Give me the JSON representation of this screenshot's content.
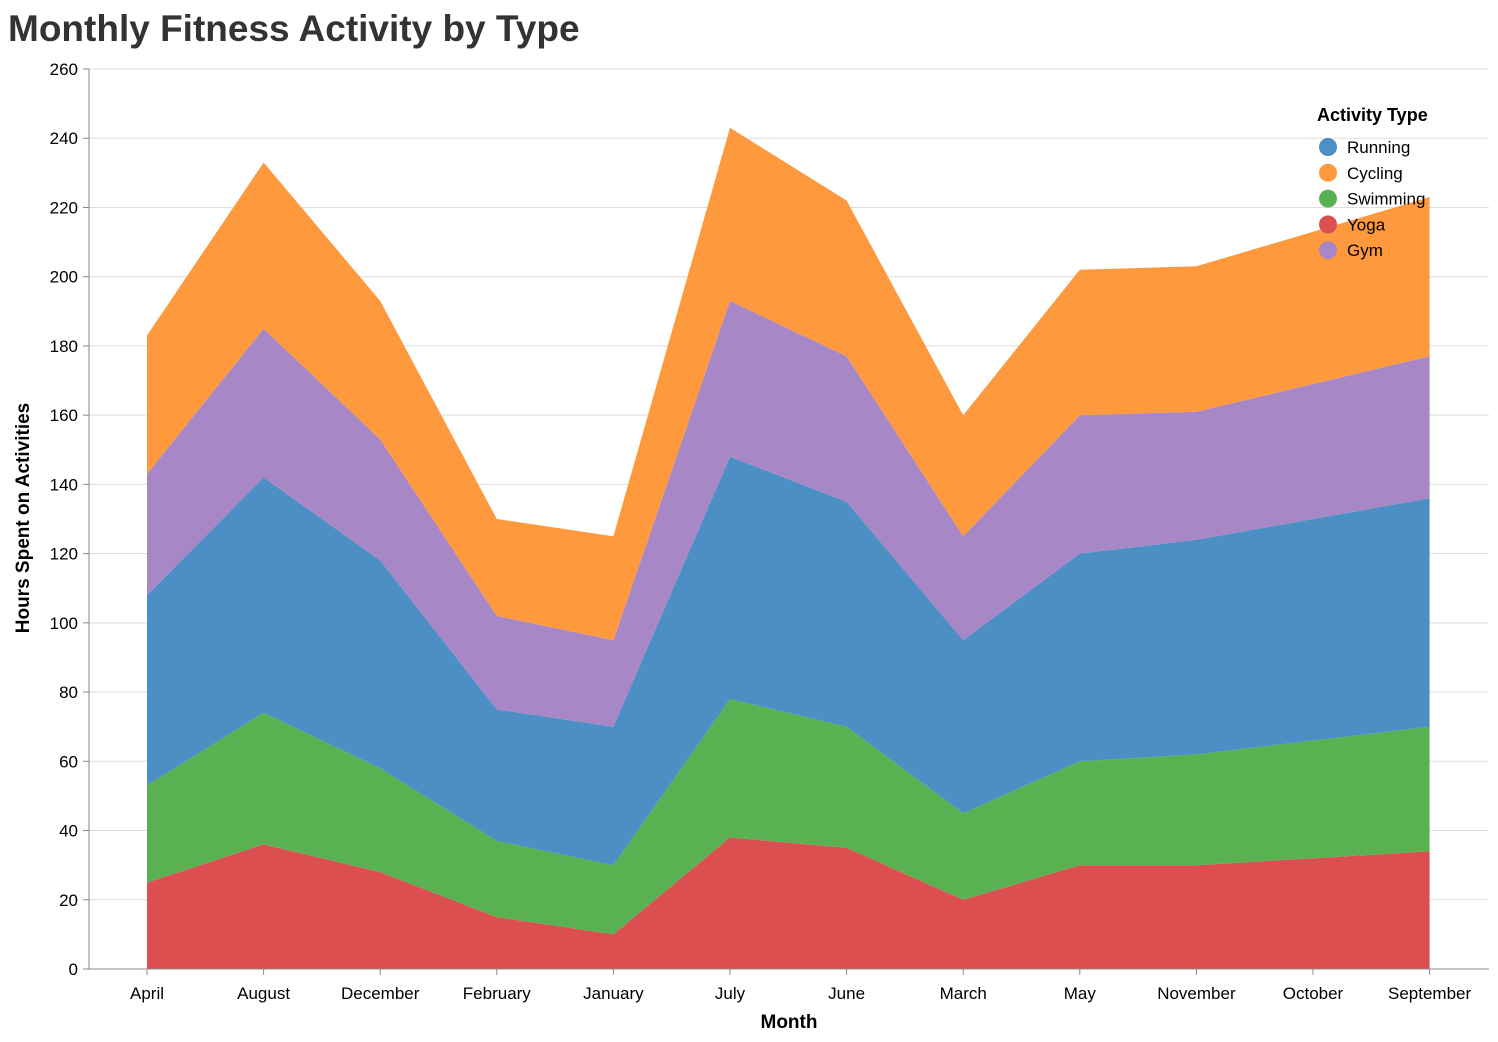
{
  "chart_data": {
    "type": "area",
    "stacked": true,
    "title": "Monthly Fitness Activity by Type",
    "xlabel": "Month",
    "ylabel": "Hours Spent on Activities",
    "ylim": [
      0,
      260
    ],
    "yticks": [
      0,
      20,
      40,
      60,
      80,
      100,
      120,
      140,
      160,
      180,
      200,
      220,
      240,
      260
    ],
    "grid": true,
    "legend_title": "Activity Type",
    "legend_position": "top-right",
    "categories": [
      "April",
      "August",
      "December",
      "February",
      "January",
      "July",
      "June",
      "March",
      "May",
      "November",
      "October",
      "September"
    ],
    "series": [
      {
        "name": "Running",
        "color": "#4c8fc4",
        "values": [
          55,
          68,
          60,
          38,
          40,
          70,
          65,
          50,
          60,
          62,
          64,
          66
        ]
      },
      {
        "name": "Cycling",
        "color": "#fe9a3d",
        "values": [
          40,
          48,
          40,
          28,
          30,
          50,
          45,
          35,
          42,
          42,
          44,
          46
        ]
      },
      {
        "name": "Swimming",
        "color": "#59b151",
        "values": [
          28,
          38,
          30,
          22,
          20,
          40,
          35,
          25,
          30,
          32,
          34,
          36
        ]
      },
      {
        "name": "Yoga",
        "color": "#dc4f50",
        "values": [
          25,
          36,
          28,
          15,
          10,
          38,
          35,
          20,
          30,
          30,
          32,
          34
        ]
      },
      {
        "name": "Gym",
        "color": "#a887c6",
        "values": [
          35,
          43,
          35,
          27,
          25,
          45,
          42,
          30,
          40,
          37,
          39,
          41
        ]
      }
    ],
    "stack_order_bottom_to_top": [
      "Yoga",
      "Swimming",
      "Running",
      "Gym",
      "Cycling"
    ]
  }
}
